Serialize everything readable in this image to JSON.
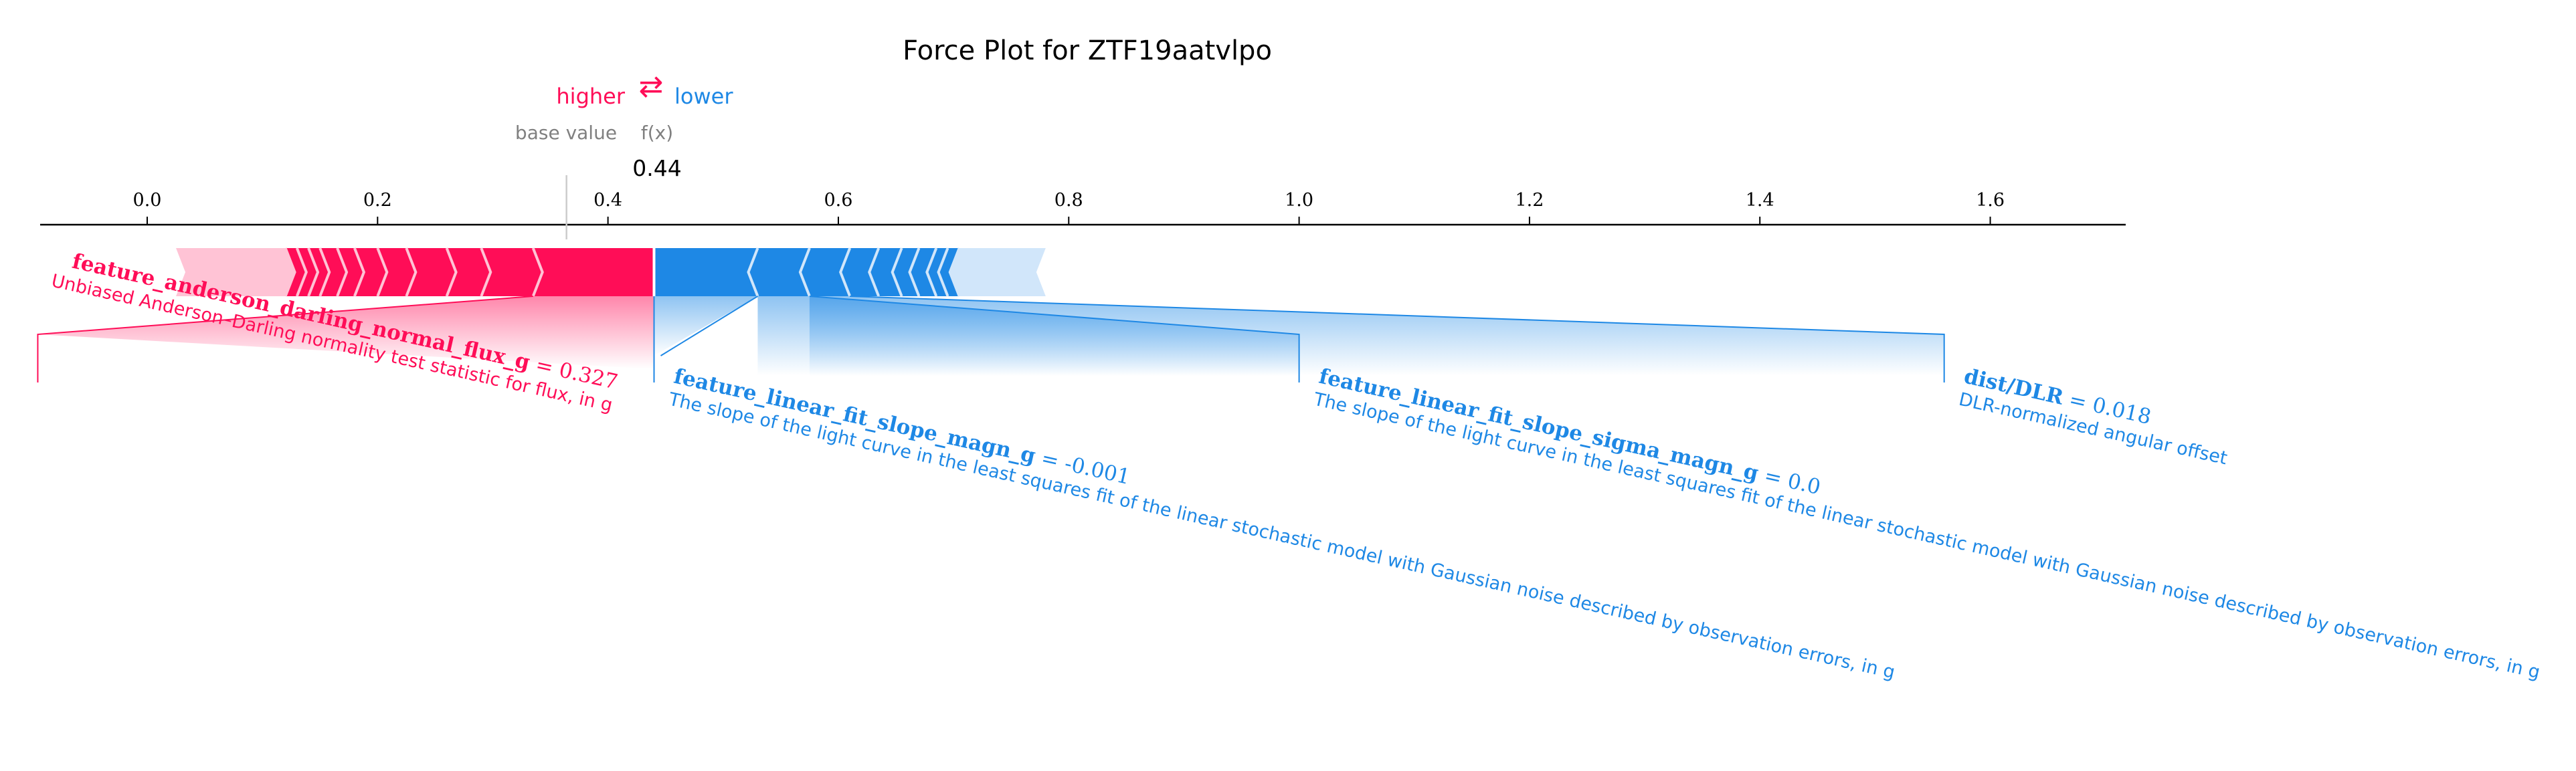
{
  "chart_data": {
    "type": "force",
    "title": "Force Plot for ZTF19aatvlpo",
    "legend": {
      "higher_label": "higher",
      "arrows": "⇄",
      "lower_label": "lower"
    },
    "base_value_label": "base value",
    "fx_label": "f(x)",
    "output_value": 0.44,
    "output_value_label": "0.44",
    "base_value": 0.364,
    "x_range": [
      -0.095,
      1.72
    ],
    "tick_values": [
      0.0,
      0.2,
      0.4,
      0.6,
      0.8,
      1.0,
      1.2,
      1.4,
      1.6
    ],
    "tick_labels": [
      "0.0",
      "0.2",
      "0.4",
      "0.6",
      "0.8",
      "1.0",
      "1.2",
      "1.4",
      "1.6"
    ],
    "colors": {
      "positive": "#ff0d57",
      "positive_light": "#ffc3d5",
      "negative": "#1e88e5",
      "negative_light": "#d1e6fa",
      "text": "#000000",
      "muted": "#808080"
    },
    "positive_extent": [
      0.025,
      0.44
    ],
    "negative_extent": [
      0.44,
      0.78
    ],
    "positive_chevrons": [
      0.12,
      0.13,
      0.14,
      0.15,
      0.165,
      0.18,
      0.2,
      0.225,
      0.26,
      0.29,
      0.335
    ],
    "negative_chevrons": [
      0.53,
      0.575,
      0.61,
      0.635,
      0.655,
      0.67,
      0.685,
      0.695,
      0.705
    ],
    "annotated_features": [
      {
        "name": "feature_anderson_darling_normal_flux_g",
        "value_label": "0.327",
        "description": "Unbiased Anderson–Darling normality test statistic for flux, in g",
        "direction": "higher",
        "segment": [
          0.335,
          0.44
        ],
        "label_anchor": -0.095
      },
      {
        "name": "feature_linear_fit_slope_magn_g",
        "value_label": "-0.001",
        "description": "The slope of the light curve in the least squares fit of the linear stochastic model with Gaussian noise described by observation errors, in g",
        "direction": "lower",
        "segment": [
          0.44,
          0.53
        ],
        "label_anchor": 0.44
      },
      {
        "name": "feature_linear_fit_slope_sigma_magn_g",
        "value_label": "0.0",
        "description": "The slope of the light curve in the least squares fit of the linear stochastic model with Gaussian noise described by observation errors, in g",
        "direction": "lower",
        "segment": [
          0.53,
          0.575
        ],
        "label_anchor": 1.0
      },
      {
        "name": "dist/DLR",
        "value_label": "0.018",
        "description": "DLR-normalized angular offset",
        "direction": "lower",
        "segment": [
          0.575,
          0.61
        ],
        "label_anchor": 1.56
      }
    ]
  }
}
